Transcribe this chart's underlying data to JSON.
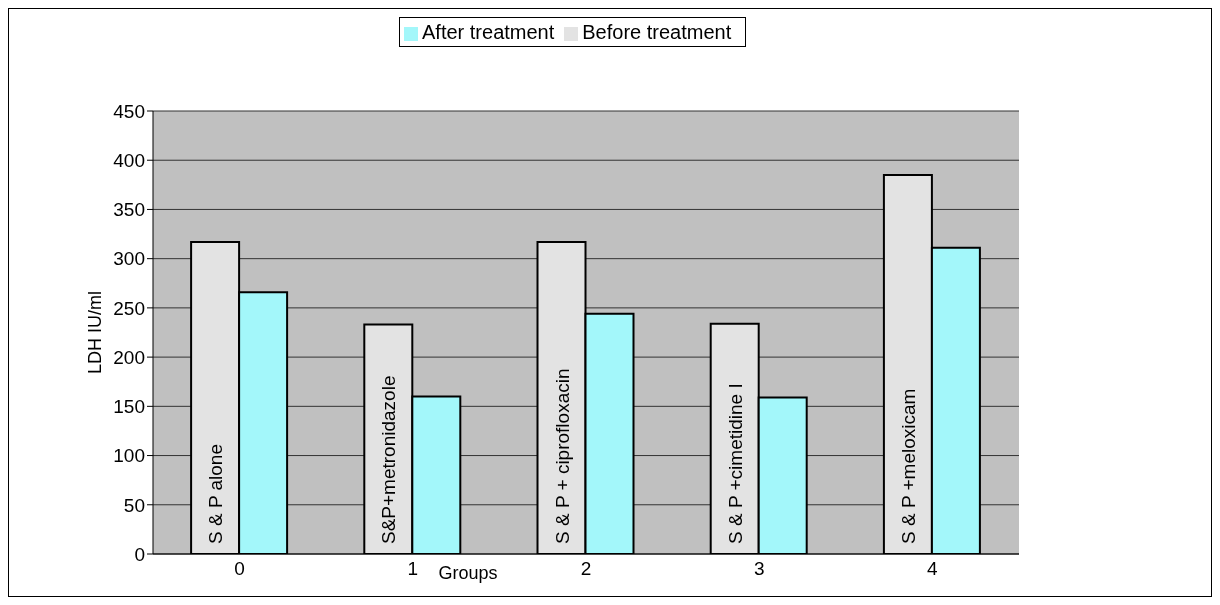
{
  "chart_data": {
    "type": "bar",
    "xlabel": "Groups",
    "ylabel": "LDH IU/ml",
    "categories": [
      "0",
      "1",
      "2",
      "3",
      "4"
    ],
    "series": [
      {
        "name": "Before treatment",
        "color": "#e3e3e3",
        "values": [
          317,
          233,
          317,
          234,
          385
        ]
      },
      {
        "name": "After treatment",
        "color": "#a3f7fa",
        "values": [
          266,
          160,
          244,
          159,
          311
        ]
      }
    ],
    "annotations": [
      "S & P alone",
      "S&P+metronidazole",
      "S & P + ciprofloxacin",
      "S & P +cimetidine I",
      "S & P +meloxicam"
    ],
    "ylim": [
      0,
      450
    ],
    "yticks": [
      0,
      50,
      100,
      150,
      200,
      250,
      300,
      350,
      400,
      450
    ],
    "grid": "y",
    "legend": "top"
  }
}
